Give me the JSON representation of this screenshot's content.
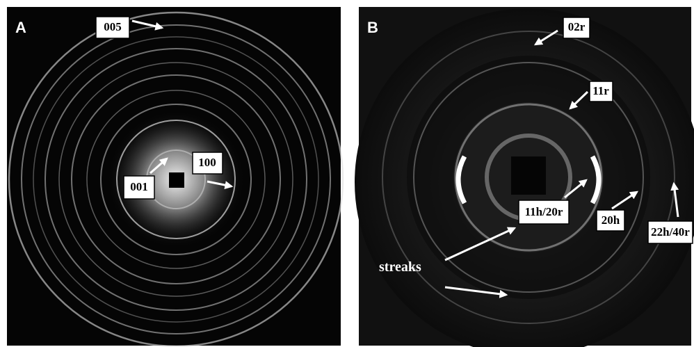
{
  "panels": [
    {
      "label": "A",
      "annotations": [
        "005",
        "001",
        "100"
      ]
    },
    {
      "label": "B",
      "annotations": [
        "02r",
        "11r",
        "11h/20r",
        "20h",
        "22h/40r"
      ],
      "note": "streaks"
    }
  ]
}
